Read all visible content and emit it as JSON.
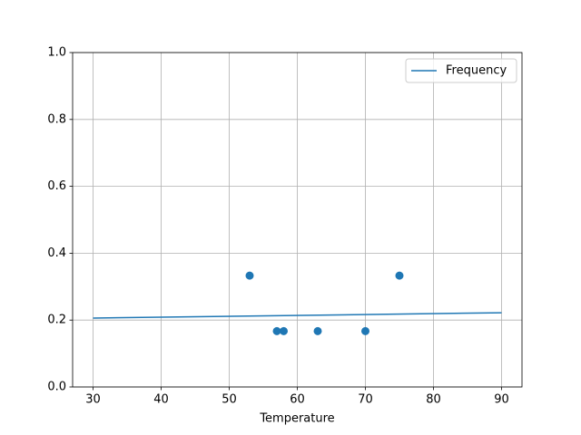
{
  "chart_data": {
    "type": "scatter",
    "xlabel": "Temperature",
    "xlim": [
      27,
      93
    ],
    "ylim": [
      0,
      1
    ],
    "xticks": [
      30,
      40,
      50,
      60,
      70,
      80,
      90
    ],
    "yticks": [
      {
        "value": 0,
        "label": "0.0"
      },
      0.2,
      0.4,
      0.6,
      0.8,
      {
        "value": 1,
        "label": "1.0"
      }
    ],
    "grid": true,
    "legend": "upper right",
    "series": [
      {
        "name": "Frequency",
        "kind": "line",
        "color": "#1f77b4",
        "x": [
          30,
          90
        ],
        "values": [
          0.206,
          0.222
        ]
      },
      {
        "kind": "scatter",
        "color": "#1f77b4",
        "x": [
          53,
          57,
          58,
          63,
          70,
          75
        ],
        "values": [
          0.333,
          0.167,
          0.167,
          0.167,
          0.167,
          0.333
        ]
      }
    ]
  }
}
